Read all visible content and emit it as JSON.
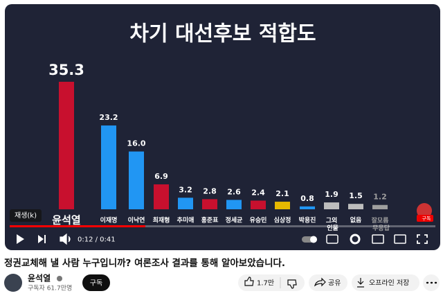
{
  "video": {
    "tooltip": "재생(k)",
    "time": "0:12 / 0:41",
    "watermark": "구독"
  },
  "chart_data": {
    "type": "bar",
    "title": "차기 대선후보 적합도",
    "categories": [
      "윤석열",
      "이재명",
      "이낙연",
      "최재형",
      "추미애",
      "홍준표",
      "정세균",
      "유승민",
      "심상정",
      "박용진",
      "그외 인물",
      "없음",
      "잘모름 무응답"
    ],
    "values": [
      35.3,
      23.2,
      16.0,
      6.9,
      3.2,
      2.8,
      2.6,
      2.4,
      2.1,
      0.8,
      1.9,
      1.5,
      1.2
    ],
    "value_labels": [
      "35.3",
      "23.2",
      "16.0",
      "6.9",
      "3.2",
      "2.8",
      "2.6",
      "2.4",
      "2.1",
      "0.8",
      "1.9",
      "1.5",
      "1.2"
    ],
    "colors": [
      "#c8102e",
      "#2196f3",
      "#2196f3",
      "#c8102e",
      "#2196f3",
      "#c8102e",
      "#2196f3",
      "#c8102e",
      "#e6b800",
      "#2196f3",
      "#bdbdbd",
      "#bdbdbd",
      "#9e9e9e"
    ]
  },
  "title": "정권교체해 낼 사람 누구입니까? 여론조사 결과를 통해 알아보았습니다.",
  "channel": {
    "name": "윤석열",
    "subscribers": "구독자 61.7만명",
    "subscribe": "구독"
  },
  "actions": {
    "likes": "1.7만",
    "share": "공유",
    "download": "오프라인 저장"
  }
}
